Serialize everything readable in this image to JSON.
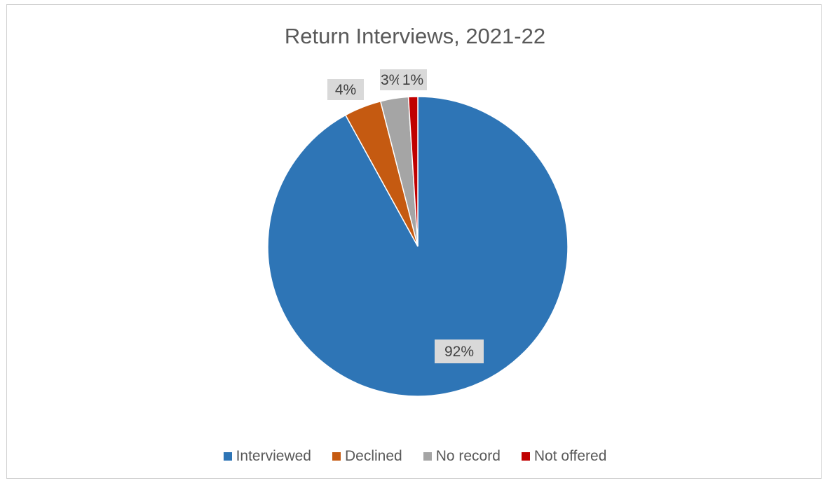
{
  "chart_data": {
    "type": "pie",
    "title": "Return Interviews, 2021-22",
    "categories": [
      "Interviewed",
      "Declined",
      "No record",
      "Not offered"
    ],
    "values": [
      92,
      4,
      3,
      1
    ],
    "data_labels": [
      "92%",
      "4%",
      "3%",
      "1%"
    ],
    "colors": [
      "#2e75b6",
      "#c55a11",
      "#a5a5a5",
      "#c00000"
    ],
    "legend_position": "bottom"
  }
}
